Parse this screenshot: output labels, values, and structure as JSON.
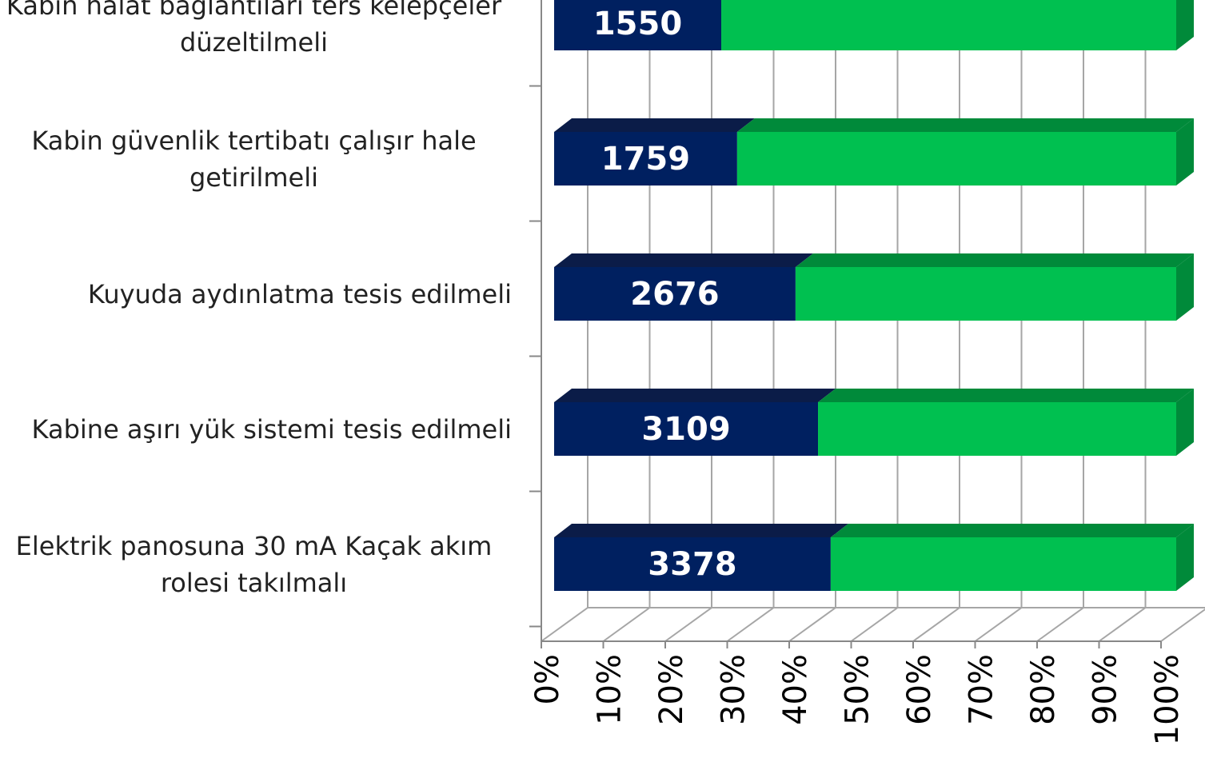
{
  "chart_data": {
    "type": "stacked_bar_100",
    "categories": [
      "Kabin halat bağlantıları ters kelepçeler düzeltilmeli",
      "Kabin güvenlik tertibatı çalışır hale getirilmeli",
      "Kuyuda aydınlatma tesis edilmeli",
      "Kabine aşırı yük sistemi tesis edilmeli",
      "Elektrik panosuna 30 mA Kaçak akım rolesi takılmalı"
    ],
    "series": [
      {
        "color": "#002060",
        "top_color": "#0b1c48",
        "values": [
          1550,
          1759,
          2676,
          3109,
          3378
        ],
        "show_labels": true
      },
      {
        "color": "#00c050",
        "top_color": "#008a3a",
        "values": [
          4220,
          4220,
          4220,
          4220,
          4220
        ],
        "show_labels": false
      }
    ],
    "xlim": [
      0,
      100
    ],
    "xticks": [
      {
        "value": 0,
        "label": "0%"
      },
      {
        "value": 10,
        "label": "10%"
      },
      {
        "value": 20,
        "label": "20%"
      },
      {
        "value": 30,
        "label": "30%"
      },
      {
        "value": 40,
        "label": "40%"
      },
      {
        "value": 50,
        "label": "50%"
      },
      {
        "value": 60,
        "label": "60%"
      },
      {
        "value": 70,
        "label": "70%"
      },
      {
        "value": 80,
        "label": "80%"
      },
      {
        "value": 90,
        "label": "90%"
      },
      {
        "value": 100,
        "label": "100%"
      }
    ],
    "grid": true
  }
}
